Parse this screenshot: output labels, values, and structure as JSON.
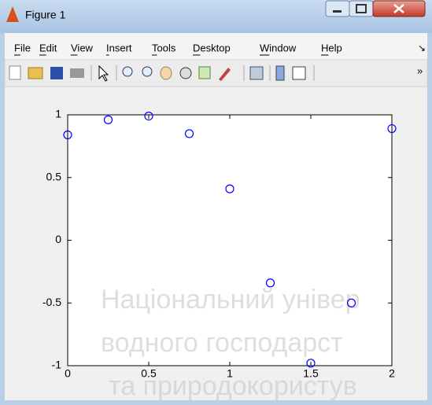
{
  "window": {
    "title": "Figure 1"
  },
  "menu": [
    "File",
    "Edit",
    "View",
    "Insert",
    "Tools",
    "Desktop",
    "Window",
    "Help"
  ],
  "watermark": [
    "Національний універ",
    "водного господарст",
    "та природокористув"
  ],
  "chart_data": {
    "type": "scatter",
    "color": "#0000ff",
    "x": [
      0,
      0.25,
      0.5,
      0.75,
      1,
      1.25,
      1.5,
      1.75,
      2
    ],
    "values": [
      0.84,
      0.96,
      0.99,
      0.85,
      0.41,
      -0.34,
      -0.98,
      -0.5,
      0.89
    ],
    "xlim": [
      0,
      2
    ],
    "xticks": [
      0,
      0.5,
      1,
      1.5,
      2
    ],
    "ylim": [
      -1,
      1
    ],
    "yticks": [
      -1,
      -0.5,
      0,
      0.5,
      1
    ],
    "grid": false
  }
}
